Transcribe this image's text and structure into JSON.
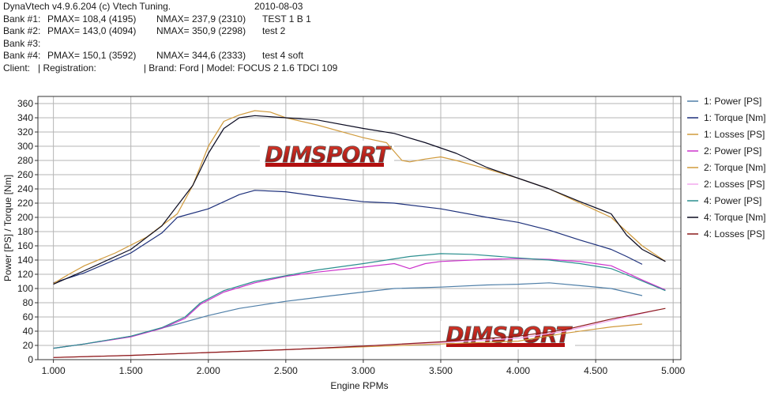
{
  "header": {
    "software": "DynaVtech v4.9.6.204 (c) Vtech Tuning.",
    "date": "2010-08-03",
    "banks": [
      {
        "label": "Bank #1:",
        "pmax": "PMAX= 108,4 (4195)",
        "nmax": "NMAX= 237,9 (2310)",
        "name": "TEST 1 B 1"
      },
      {
        "label": "Bank #2:",
        "pmax": "PMAX= 143,0 (4094)",
        "nmax": "NMAX= 350,9 (2298)",
        "name": "test 2"
      },
      {
        "label": "Bank #3:",
        "pmax": "",
        "nmax": "",
        "name": ""
      },
      {
        "label": "Bank #4:",
        "pmax": "PMAX= 150,1 (3592)",
        "nmax": "NMAX= 344,6 (2333)",
        "name": "test 4 soft"
      }
    ],
    "client_line": "Client:   | Registration:                  | Brand: Ford | Model: FOCUS 2 1.6 TDCI 109"
  },
  "logo_text": "DIMSPORT",
  "chart_data": {
    "type": "line",
    "xlabel": "Engine RPMs",
    "ylabel": "Power [PS] / Torque [Nm]",
    "xlim": [
      900,
      5050
    ],
    "ylim": [
      0,
      370
    ],
    "x_ticks": [
      1000,
      1500,
      2000,
      2500,
      3000,
      3500,
      4000,
      4500,
      5000
    ],
    "x_tick_labels": [
      "1.000",
      "1.500",
      "2.000",
      "2.500",
      "3.000",
      "3.500",
      "4.000",
      "4.500",
      "5.000"
    ],
    "y_ticks": [
      0,
      20,
      40,
      60,
      80,
      100,
      120,
      140,
      160,
      180,
      200,
      220,
      240,
      260,
      280,
      300,
      320,
      340,
      360
    ],
    "grid": true,
    "legend_position": "right",
    "series": [
      {
        "name": "1: Power [PS]",
        "color": "#4f7fa8",
        "points": [
          [
            1000,
            16
          ],
          [
            1200,
            22
          ],
          [
            1500,
            33
          ],
          [
            1800,
            50
          ],
          [
            2000,
            62
          ],
          [
            2200,
            72
          ],
          [
            2500,
            82
          ],
          [
            2800,
            90
          ],
          [
            3000,
            95
          ],
          [
            3200,
            100
          ],
          [
            3500,
            102
          ],
          [
            3800,
            105
          ],
          [
            4000,
            106
          ],
          [
            4200,
            108
          ],
          [
            4400,
            104
          ],
          [
            4600,
            100
          ],
          [
            4800,
            90
          ]
        ]
      },
      {
        "name": "1: Torque [Nm]",
        "color": "#1c2f7a",
        "points": [
          [
            1000,
            108
          ],
          [
            1200,
            122
          ],
          [
            1500,
            150
          ],
          [
            1700,
            178
          ],
          [
            1800,
            200
          ],
          [
            2000,
            212
          ],
          [
            2200,
            232
          ],
          [
            2300,
            238
          ],
          [
            2500,
            236
          ],
          [
            2700,
            230
          ],
          [
            3000,
            222
          ],
          [
            3200,
            220
          ],
          [
            3500,
            212
          ],
          [
            3800,
            200
          ],
          [
            4000,
            193
          ],
          [
            4200,
            182
          ],
          [
            4400,
            168
          ],
          [
            4600,
            155
          ],
          [
            4700,
            145
          ],
          [
            4800,
            134
          ]
        ]
      },
      {
        "name": "1: Losses [PS]",
        "color": "#d09a3c",
        "points": [
          [
            1000,
            3
          ],
          [
            1500,
            6
          ],
          [
            2000,
            10
          ],
          [
            2500,
            14
          ],
          [
            3000,
            18
          ],
          [
            3500,
            22
          ],
          [
            4000,
            26
          ],
          [
            4300,
            37
          ],
          [
            4600,
            46
          ],
          [
            4800,
            50
          ]
        ]
      },
      {
        "name": "2: Power [PS]",
        "color": "#cc33cc",
        "points": [
          [
            1000,
            16
          ],
          [
            1200,
            22
          ],
          [
            1500,
            32
          ],
          [
            1700,
            44
          ],
          [
            1850,
            58
          ],
          [
            1950,
            78
          ],
          [
            2100,
            95
          ],
          [
            2300,
            108
          ],
          [
            2500,
            117
          ],
          [
            2700,
            123
          ],
          [
            3000,
            130
          ],
          [
            3200,
            135
          ],
          [
            3300,
            128
          ],
          [
            3400,
            135
          ],
          [
            3500,
            138
          ],
          [
            3800,
            141
          ],
          [
            4000,
            142
          ],
          [
            4200,
            141
          ],
          [
            4400,
            138
          ],
          [
            4600,
            132
          ],
          [
            4800,
            112
          ],
          [
            4950,
            98
          ]
        ]
      },
      {
        "name": "2: Torque [Nm]",
        "color": "#d09a3c",
        "points": [
          [
            1000,
            107
          ],
          [
            1100,
            120
          ],
          [
            1200,
            132
          ],
          [
            1400,
            150
          ],
          [
            1600,
            172
          ],
          [
            1800,
            205
          ],
          [
            1900,
            245
          ],
          [
            2000,
            300
          ],
          [
            2100,
            335
          ],
          [
            2200,
            344
          ],
          [
            2300,
            350
          ],
          [
            2400,
            348
          ],
          [
            2500,
            340
          ],
          [
            2700,
            330
          ],
          [
            2900,
            318
          ],
          [
            3000,
            312
          ],
          [
            3150,
            305
          ],
          [
            3250,
            280
          ],
          [
            3300,
            278
          ],
          [
            3400,
            282
          ],
          [
            3500,
            285
          ],
          [
            3600,
            280
          ],
          [
            3800,
            268
          ],
          [
            4000,
            255
          ],
          [
            4200,
            240
          ],
          [
            4400,
            220
          ],
          [
            4600,
            200
          ],
          [
            4700,
            180
          ],
          [
            4800,
            160
          ],
          [
            4950,
            138
          ]
        ]
      },
      {
        "name": "2: Losses [PS]",
        "color": "#f2a8ee",
        "points": [
          [
            1000,
            3
          ],
          [
            1500,
            6
          ],
          [
            2000,
            10
          ],
          [
            2500,
            14
          ],
          [
            3000,
            19
          ],
          [
            3500,
            24
          ],
          [
            4000,
            30
          ],
          [
            4300,
            40
          ],
          [
            4600,
            55
          ],
          [
            4900,
            70
          ]
        ]
      },
      {
        "name": "4: Power [PS]",
        "color": "#2b8f8f",
        "points": [
          [
            1000,
            16
          ],
          [
            1200,
            22
          ],
          [
            1500,
            33
          ],
          [
            1700,
            45
          ],
          [
            1850,
            60
          ],
          [
            1950,
            80
          ],
          [
            2100,
            97
          ],
          [
            2300,
            110
          ],
          [
            2500,
            118
          ],
          [
            2700,
            126
          ],
          [
            3000,
            135
          ],
          [
            3300,
            145
          ],
          [
            3500,
            149
          ],
          [
            3700,
            148
          ],
          [
            4000,
            143
          ],
          [
            4200,
            140
          ],
          [
            4400,
            135
          ],
          [
            4600,
            128
          ],
          [
            4750,
            115
          ],
          [
            4950,
            97
          ]
        ]
      },
      {
        "name": "4: Torque [Nm]",
        "color": "#0a0a20",
        "points": [
          [
            1000,
            106
          ],
          [
            1200,
            125
          ],
          [
            1500,
            155
          ],
          [
            1700,
            188
          ],
          [
            1900,
            245
          ],
          [
            2000,
            290
          ],
          [
            2100,
            325
          ],
          [
            2200,
            340
          ],
          [
            2300,
            343
          ],
          [
            2500,
            340
          ],
          [
            2700,
            337
          ],
          [
            3000,
            325
          ],
          [
            3200,
            318
          ],
          [
            3400,
            305
          ],
          [
            3600,
            290
          ],
          [
            3800,
            270
          ],
          [
            4000,
            255
          ],
          [
            4200,
            240
          ],
          [
            4400,
            222
          ],
          [
            4600,
            205
          ],
          [
            4700,
            175
          ],
          [
            4800,
            155
          ],
          [
            4950,
            138
          ]
        ]
      },
      {
        "name": "4: Losses [PS]",
        "color": "#8b1a1a",
        "points": [
          [
            1000,
            3
          ],
          [
            1500,
            6
          ],
          [
            2000,
            10
          ],
          [
            2500,
            14
          ],
          [
            3000,
            19
          ],
          [
            3500,
            25
          ],
          [
            4000,
            33
          ],
          [
            4300,
            42
          ],
          [
            4600,
            57
          ],
          [
            4950,
            72
          ]
        ]
      }
    ]
  }
}
